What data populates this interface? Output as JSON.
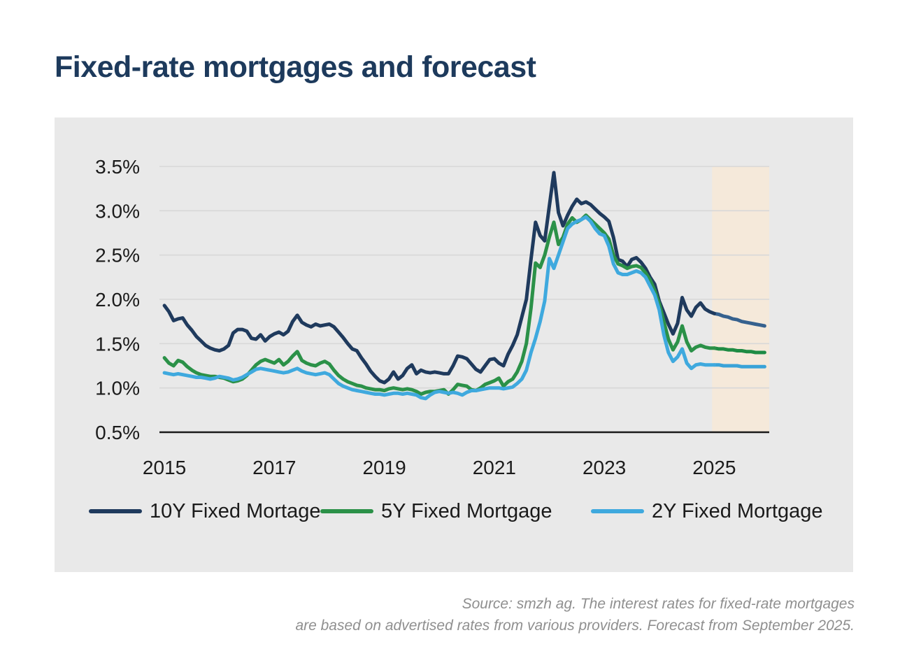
{
  "page": {
    "title": "Fixed-rate mortgages and forecast"
  },
  "source_note": {
    "line1": "Source: smzh ag. The interest rates for fixed-rate mortgages",
    "line2": "are based on advertised rates from various providers. Forecast from September 2025."
  },
  "colors": {
    "title": "#1d3a5c",
    "panel_background": "#e9e9e9",
    "forecast_band": "#f5e9da",
    "gridline": "#d8d8d8",
    "axis_line": "#1a1a1a",
    "tick_label": "#1b1b1b",
    "source_text": "#8f8f8f",
    "series_10y": "#1f3a5d",
    "series_5y": "#2b9148",
    "series_2y": "#3fa9de"
  },
  "chart_data": {
    "type": "line",
    "title": "Fixed-rate mortgages and forecast",
    "xlabel": "",
    "ylabel": "",
    "grid": true,
    "legend_position": "bottom",
    "xlim": [
      2014.91,
      2026.0
    ],
    "ylim": [
      0.5,
      3.5
    ],
    "x_start_year": 2015,
    "x_step_months": 1,
    "x_tick_years": [
      2015,
      2017,
      2019,
      2021,
      2023,
      2025
    ],
    "x_tick_labels": [
      "2015",
      "2017",
      "2019",
      "2021",
      "2023",
      "2025"
    ],
    "y_tick_values": [
      3.5,
      3.0,
      2.5,
      2.0,
      1.5,
      1.0,
      0.5
    ],
    "y_tick_labels": [
      "3.5%",
      "3.0%",
      "2.5%",
      "2.0%",
      "1.5%",
      "1.0%",
      "0.5%"
    ],
    "forecast": {
      "band_start_year": 2024.96,
      "band_end_year": 2026.0,
      "split_year": 2025.0,
      "note": "Forecast from September 2025"
    },
    "series": [
      {
        "name": "10Y Fixed Mortage",
        "color": "#1f3a5d",
        "forecast_color": "#36618e",
        "values": [
          1.93,
          1.86,
          1.76,
          1.78,
          1.79,
          1.71,
          1.65,
          1.58,
          1.53,
          1.48,
          1.45,
          1.43,
          1.42,
          1.44,
          1.48,
          1.62,
          1.66,
          1.66,
          1.64,
          1.56,
          1.55,
          1.6,
          1.53,
          1.58,
          1.61,
          1.63,
          1.6,
          1.64,
          1.75,
          1.82,
          1.74,
          1.71,
          1.69,
          1.72,
          1.7,
          1.71,
          1.72,
          1.69,
          1.63,
          1.57,
          1.5,
          1.44,
          1.42,
          1.34,
          1.27,
          1.19,
          1.13,
          1.08,
          1.06,
          1.1,
          1.18,
          1.1,
          1.14,
          1.22,
          1.26,
          1.16,
          1.2,
          1.18,
          1.17,
          1.18,
          1.17,
          1.16,
          1.16,
          1.25,
          1.36,
          1.35,
          1.33,
          1.27,
          1.21,
          1.18,
          1.25,
          1.32,
          1.33,
          1.28,
          1.25,
          1.38,
          1.48,
          1.6,
          1.8,
          2.0,
          2.45,
          2.87,
          2.72,
          2.66,
          3.05,
          3.43,
          2.98,
          2.83,
          2.95,
          3.05,
          3.13,
          3.08,
          3.1,
          3.07,
          3.02,
          2.97,
          2.93,
          2.88,
          2.7,
          2.45,
          2.43,
          2.37,
          2.45,
          2.47,
          2.42,
          2.35,
          2.25,
          2.17,
          1.98,
          1.85,
          1.72,
          1.61,
          1.73,
          2.02,
          1.88,
          1.81,
          1.91,
          1.96,
          1.89,
          1.86,
          1.84,
          1.83,
          1.81,
          1.8,
          1.78,
          1.77,
          1.75,
          1.74,
          1.73,
          1.72,
          1.71,
          1.7
        ]
      },
      {
        "name": "5Y Fixed Mortgage",
        "color": "#2b9148",
        "forecast_color": "#1e8b43",
        "values": [
          1.34,
          1.28,
          1.25,
          1.31,
          1.29,
          1.24,
          1.2,
          1.17,
          1.15,
          1.14,
          1.13,
          1.13,
          1.12,
          1.11,
          1.09,
          1.07,
          1.08,
          1.1,
          1.14,
          1.2,
          1.26,
          1.3,
          1.32,
          1.3,
          1.28,
          1.32,
          1.26,
          1.3,
          1.36,
          1.41,
          1.31,
          1.28,
          1.26,
          1.25,
          1.28,
          1.3,
          1.27,
          1.2,
          1.14,
          1.1,
          1.07,
          1.05,
          1.03,
          1.02,
          1.0,
          0.99,
          0.98,
          0.98,
          0.97,
          0.99,
          1.0,
          0.99,
          0.98,
          0.99,
          0.98,
          0.96,
          0.93,
          0.95,
          0.96,
          0.96,
          0.97,
          0.98,
          0.93,
          0.98,
          1.04,
          1.03,
          1.02,
          0.98,
          0.97,
          1.0,
          1.04,
          1.06,
          1.08,
          1.11,
          1.02,
          1.07,
          1.1,
          1.18,
          1.3,
          1.5,
          1.9,
          2.41,
          2.36,
          2.5,
          2.7,
          2.87,
          2.62,
          2.7,
          2.85,
          2.92,
          2.87,
          2.9,
          2.95,
          2.9,
          2.85,
          2.8,
          2.75,
          2.68,
          2.5,
          2.4,
          2.38,
          2.35,
          2.37,
          2.38,
          2.36,
          2.3,
          2.22,
          2.1,
          1.95,
          1.75,
          1.55,
          1.43,
          1.52,
          1.7,
          1.52,
          1.42,
          1.46,
          1.48,
          1.46,
          1.45,
          1.45,
          1.44,
          1.44,
          1.43,
          1.43,
          1.42,
          1.42,
          1.41,
          1.41,
          1.4,
          1.4,
          1.4
        ]
      },
      {
        "name": "2Y Fixed Mortgage",
        "color": "#3fa9de",
        "forecast_color": "#3aa3d8",
        "values": [
          1.17,
          1.16,
          1.15,
          1.16,
          1.15,
          1.14,
          1.13,
          1.12,
          1.12,
          1.11,
          1.1,
          1.11,
          1.13,
          1.12,
          1.11,
          1.09,
          1.1,
          1.12,
          1.15,
          1.18,
          1.21,
          1.22,
          1.21,
          1.2,
          1.19,
          1.18,
          1.17,
          1.18,
          1.2,
          1.22,
          1.19,
          1.17,
          1.16,
          1.15,
          1.16,
          1.17,
          1.15,
          1.1,
          1.05,
          1.02,
          1.0,
          0.98,
          0.97,
          0.96,
          0.95,
          0.94,
          0.93,
          0.93,
          0.92,
          0.93,
          0.94,
          0.94,
          0.93,
          0.94,
          0.93,
          0.92,
          0.89,
          0.88,
          0.92,
          0.95,
          0.96,
          0.95,
          0.94,
          0.95,
          0.94,
          0.92,
          0.95,
          0.97,
          0.97,
          0.98,
          0.99,
          1.0,
          1.0,
          1.0,
          0.99,
          1.0,
          1.01,
          1.05,
          1.1,
          1.2,
          1.4,
          1.56,
          1.75,
          1.98,
          2.46,
          2.35,
          2.5,
          2.65,
          2.8,
          2.85,
          2.88,
          2.9,
          2.93,
          2.88,
          2.8,
          2.74,
          2.72,
          2.6,
          2.4,
          2.3,
          2.28,
          2.28,
          2.3,
          2.32,
          2.3,
          2.25,
          2.15,
          2.05,
          1.88,
          1.6,
          1.4,
          1.3,
          1.35,
          1.44,
          1.28,
          1.22,
          1.26,
          1.27,
          1.26,
          1.26,
          1.26,
          1.26,
          1.25,
          1.25,
          1.25,
          1.25,
          1.24,
          1.24,
          1.24,
          1.24,
          1.24,
          1.24
        ]
      }
    ]
  }
}
